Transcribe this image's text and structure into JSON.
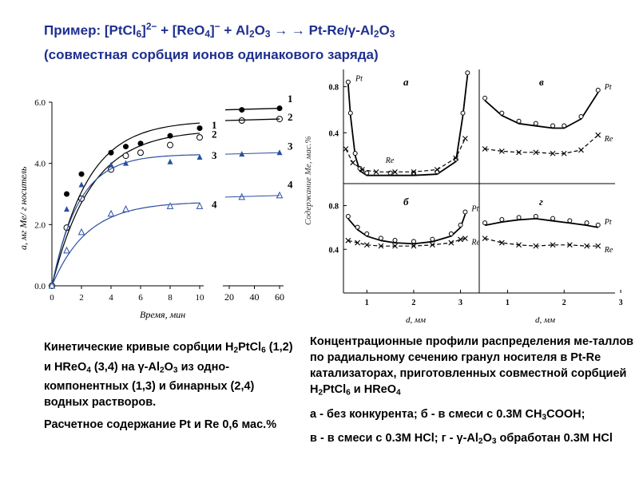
{
  "title": {
    "line1_parts": [
      "Пример: [PtCl",
      "6",
      "]",
      "2−",
      " + [ReO",
      "4",
      "]",
      "−",
      " + Al",
      "2",
      "O",
      "3",
      "  → →  Pt-Re/γ-Al",
      "2",
      "O",
      "3"
    ],
    "line2": "(совместная сорбция ионов одинакового заряда)"
  },
  "left_chart": {
    "ylabel": "a, мг Me/ г носитель",
    "xlabel": "Время, мин",
    "y_ticks": [
      "0.0",
      "2.0",
      "4.0",
      "6.0"
    ],
    "x_ticks_main": [
      "0",
      "2",
      "4",
      "6",
      "8",
      "10"
    ],
    "x_ticks_extra": [
      "20",
      "40",
      "60"
    ],
    "curve_labels": [
      "1",
      "2",
      "3",
      "4"
    ],
    "extra_labels": [
      "1",
      "2",
      "3",
      "4"
    ]
  },
  "right_chart": {
    "ylabel": "Содержание Me, мас.%",
    "xlabel_left": "d, мм",
    "xlabel_right": "d, мм",
    "panels": {
      "a": {
        "label": "а",
        "y_ticks": [
          "0.8",
          "0.4"
        ],
        "labels": [
          "Pt",
          "Re"
        ]
      },
      "v": {
        "label": "в",
        "labels": [
          "Pt",
          "Re"
        ]
      },
      "b": {
        "label": "б",
        "y_ticks": [
          "0.8",
          "0.4"
        ],
        "labels": [
          "Pt",
          "Re"
        ]
      },
      "g": {
        "label": "г",
        "labels": [
          "Pt",
          "Re"
        ]
      }
    },
    "x_ticks_left": [
      "1",
      "2",
      "3"
    ],
    "x_ticks_right": [
      "1",
      "2",
      "3"
    ]
  },
  "chart_data": [
    {
      "type": "scatter",
      "title": "",
      "xlabel": "Время, мин",
      "ylabel": "a, мг Me/ г носитель",
      "xlim": [
        0,
        10
      ],
      "ylim": [
        0,
        6
      ],
      "x_extra": [
        30,
        60
      ],
      "series": [
        {
          "name": "1",
          "x": [
            0,
            1,
            2,
            4,
            5,
            6,
            8,
            10
          ],
          "y": [
            0,
            3.0,
            3.65,
            4.35,
            4.55,
            4.65,
            4.9,
            5.15
          ],
          "x_extra": [
            30,
            60
          ],
          "y_extra": [
            5.75,
            5.8
          ],
          "marker": "filled-circle"
        },
        {
          "name": "2",
          "x": [
            0,
            1,
            2,
            4,
            5,
            6,
            8,
            10
          ],
          "y": [
            0,
            1.9,
            2.85,
            3.8,
            4.25,
            4.35,
            4.6,
            4.85
          ],
          "x_extra": [
            30,
            60
          ],
          "y_extra": [
            5.4,
            5.45
          ],
          "marker": "open-circle"
        },
        {
          "name": "3",
          "x": [
            0,
            1,
            2,
            4,
            5,
            8,
            10
          ],
          "y": [
            0,
            2.5,
            3.3,
            3.95,
            4.0,
            4.05,
            4.2
          ],
          "x_extra": [
            30,
            60
          ],
          "y_extra": [
            4.3,
            4.35
          ],
          "marker": "filled-triangle"
        },
        {
          "name": "4",
          "x": [
            0,
            1,
            2,
            4,
            5,
            8,
            10
          ],
          "y": [
            0,
            1.15,
            1.75,
            2.35,
            2.5,
            2.6,
            2.6
          ],
          "x_extra": [
            30,
            60
          ],
          "y_extra": [
            2.9,
            2.95
          ],
          "marker": "open-triangle"
        }
      ]
    },
    {
      "type": "line",
      "panel": "а",
      "xlabel": "d, мм",
      "ylabel": "Содержание Me, мас.%",
      "xlim": [
        0.5,
        3.4
      ],
      "ylim": [
        0,
        0.95
      ],
      "series": [
        {
          "name": "Pt",
          "x": [
            0.6,
            0.65,
            0.75,
            0.85,
            1.0,
            1.5,
            2.0,
            2.5,
            2.9,
            3.05,
            3.15
          ],
          "y": [
            0.82,
            0.55,
            0.2,
            0.07,
            0.03,
            0.03,
            0.03,
            0.04,
            0.15,
            0.55,
            0.9
          ]
        },
        {
          "name": "Re",
          "x": [
            0.55,
            0.7,
            0.9,
            1.2,
            1.6,
            2.0,
            2.5,
            2.9,
            3.1
          ],
          "y": [
            0.26,
            0.14,
            0.08,
            0.06,
            0.06,
            0.06,
            0.08,
            0.18,
            0.35
          ]
        }
      ]
    },
    {
      "type": "line",
      "panel": "в",
      "xlabel": "d, мм",
      "ylabel": "",
      "xlim": [
        0.5,
        2.9
      ],
      "ylim": [
        0,
        0.95
      ],
      "series": [
        {
          "name": "Pt",
          "x": [
            0.6,
            0.9,
            1.2,
            1.5,
            1.8,
            2.0,
            2.3,
            2.6
          ],
          "y": [
            0.68,
            0.55,
            0.48,
            0.46,
            0.44,
            0.44,
            0.52,
            0.75
          ]
        },
        {
          "name": "Re",
          "x": [
            0.6,
            0.9,
            1.2,
            1.5,
            1.8,
            2.0,
            2.3,
            2.6
          ],
          "y": [
            0.26,
            0.24,
            0.23,
            0.23,
            0.22,
            0.22,
            0.25,
            0.38
          ]
        }
      ]
    },
    {
      "type": "line",
      "panel": "б",
      "xlabel": "d, мм",
      "ylabel": "Содержание Me, мас.%",
      "xlim": [
        0.5,
        3.4
      ],
      "ylim": [
        0,
        0.95
      ],
      "series": [
        {
          "name": "Pt",
          "x": [
            0.6,
            0.8,
            1.0,
            1.3,
            1.6,
            2.0,
            2.4,
            2.8,
            3.0,
            3.1
          ],
          "y": [
            0.68,
            0.58,
            0.52,
            0.48,
            0.46,
            0.45,
            0.47,
            0.52,
            0.6,
            0.72
          ]
        },
        {
          "name": "Re",
          "x": [
            0.6,
            0.8,
            1.0,
            1.3,
            1.6,
            2.0,
            2.4,
            2.8,
            3.0,
            3.1
          ],
          "y": [
            0.48,
            0.46,
            0.44,
            0.43,
            0.43,
            0.43,
            0.44,
            0.46,
            0.49,
            0.5
          ]
        }
      ]
    },
    {
      "type": "line",
      "panel": "г",
      "xlabel": "d, мм",
      "ylabel": "",
      "xlim": [
        0.5,
        2.9
      ],
      "ylim": [
        0,
        0.95
      ],
      "series": [
        {
          "name": "Pt",
          "x": [
            0.6,
            0.9,
            1.2,
            1.5,
            1.8,
            2.1,
            2.4,
            2.6
          ],
          "y": [
            0.62,
            0.65,
            0.67,
            0.68,
            0.66,
            0.64,
            0.62,
            0.6
          ]
        },
        {
          "name": "Re",
          "x": [
            0.6,
            0.9,
            1.2,
            1.5,
            1.8,
            2.1,
            2.4,
            2.6
          ],
          "y": [
            0.5,
            0.46,
            0.44,
            0.43,
            0.44,
            0.44,
            0.43,
            0.43
          ]
        }
      ]
    }
  ],
  "captions": {
    "left": {
      "p1_parts": [
        "Кинетические кривые сорбции H",
        "2",
        "PtCl",
        "6",
        " (1,2) и HReO",
        "4",
        "  (3,4) на γ-Al",
        "2",
        "O",
        "3",
        " из одно-компонентных (1,3) и бинарных (2,4) водных растворов."
      ],
      "p2": "Расчетное содержание Pt и Re 0,6 мас.%"
    },
    "right": {
      "p1_parts": [
        "Концентрационные профили распределения ме-таллов по радиальному сечению гранул носителя в Pt-Re катализаторах, приготовленных совместной сорбцией H",
        "2",
        "PtCl",
        "6",
        " и HReO",
        "4"
      ],
      "p2_parts": [
        "а - без конкурента;     б - в смеси с 0.3М CH",
        "3",
        "COOH;"
      ],
      "p3_parts": [
        "в - в смеси с 0.3М HCl; г - γ-Al",
        "2",
        "O",
        "3",
        " обработан 0.3М HCl"
      ]
    }
  }
}
